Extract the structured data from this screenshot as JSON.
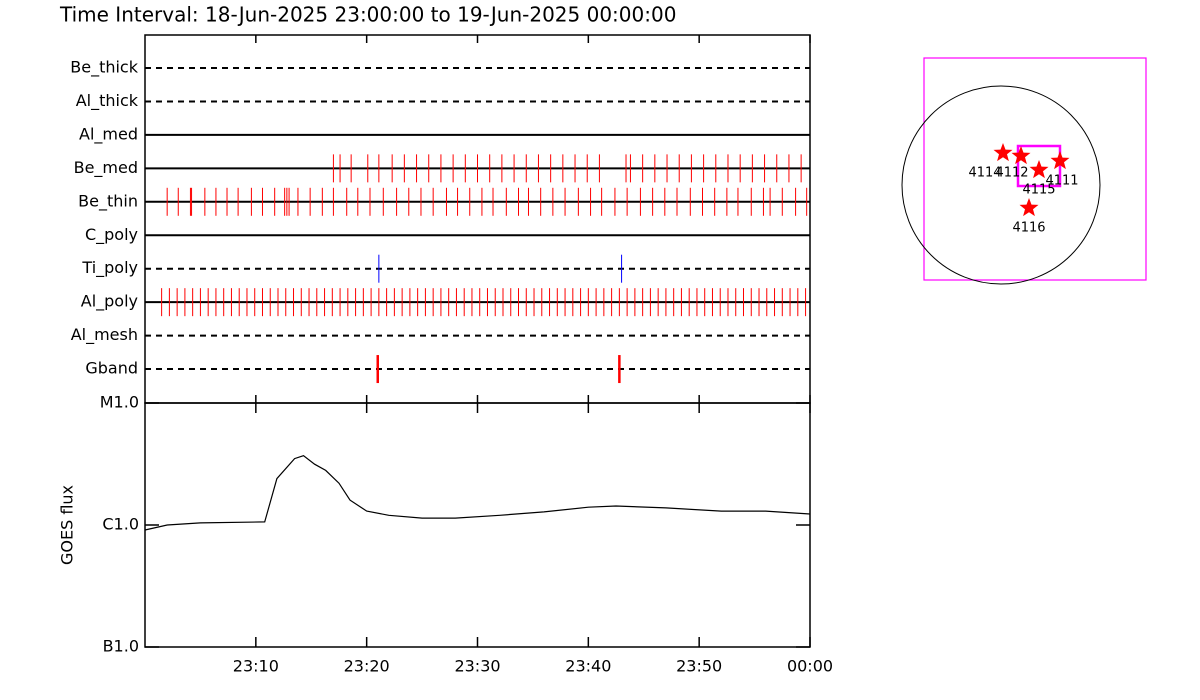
{
  "chart_data": [
    {
      "type": "event",
      "title": "Time Interval: 18-Jun-2025 23:00:00 to 19-Jun-2025 00:00:00",
      "xlim": [
        0,
        60
      ],
      "xticks": [
        {
          "value": 10,
          "label": "23:10"
        },
        {
          "value": 20,
          "label": "23:20"
        },
        {
          "value": 30,
          "label": "23:30"
        },
        {
          "value": 40,
          "label": "23:40"
        },
        {
          "value": 50,
          "label": "23:50"
        },
        {
          "value": 60,
          "label": "00:00"
        }
      ],
      "series": [
        {
          "name": "Be_thick",
          "line": "dashed",
          "color": "#ff0000",
          "values": []
        },
        {
          "name": "Al_thick",
          "line": "dashed",
          "color": "#ff0000",
          "values": []
        },
        {
          "name": "Al_med",
          "line": "solid",
          "color": "#ff0000",
          "values": []
        },
        {
          "name": "Be_med",
          "line": "solid",
          "color": "#ff0000",
          "values": [
            17.0,
            17.6,
            18.6,
            20.1,
            21.1,
            22.3,
            23.4,
            24.5,
            25.6,
            26.7,
            27.8,
            28.9,
            30.0,
            31.1,
            32.2,
            33.3,
            34.4,
            35.5,
            36.6,
            37.7,
            38.8,
            39.9,
            41.0,
            43.4,
            43.8,
            44.9,
            46.0,
            47.1,
            48.2,
            49.3,
            50.4,
            51.5,
            52.6,
            53.7,
            54.8,
            55.9,
            57.0,
            58.1,
            59.2
          ]
        },
        {
          "name": "Be_thin",
          "line": "solid",
          "color": "#ff0000",
          "values": [
            2.0,
            3.0,
            4.1,
            4.2,
            5.4,
            6.4,
            7.4,
            8.4,
            9.6,
            10.6,
            11.7,
            12.6,
            12.8,
            13.0,
            13.8,
            14.9,
            16.0,
            17.0,
            18.2,
            19.2,
            20.3,
            21.5,
            22.7,
            23.8,
            24.9,
            26.0,
            27.2,
            28.2,
            29.3,
            30.4,
            31.4,
            32.6,
            33.7,
            34.6,
            35.7,
            36.8,
            37.9,
            39.1,
            40.2,
            41.2,
            42.4,
            43.5,
            44.7,
            45.8,
            46.9,
            48.0,
            49.2,
            50.3,
            51.4,
            52.5,
            53.5,
            54.7,
            55.8,
            56.4,
            57.5,
            58.7,
            59.7
          ]
        },
        {
          "name": "C_poly",
          "line": "solid",
          "color": "#ff0000",
          "values": []
        },
        {
          "name": "Ti_poly",
          "line": "dashed",
          "color": "#0000ff",
          "values": [
            21.1,
            43.0
          ]
        },
        {
          "name": "Al_poly",
          "line": "solid",
          "color": "#ff0000",
          "values": [
            1.5,
            2.2,
            2.9,
            3.6,
            4.3,
            5.0,
            5.7,
            6.4,
            7.1,
            7.8,
            8.5,
            9.2,
            9.9,
            10.6,
            11.3,
            12.0,
            12.7,
            13.4,
            14.1,
            14.8,
            15.5,
            16.2,
            16.9,
            17.6,
            18.3,
            19.0,
            19.7,
            20.4,
            21.1,
            21.8,
            22.5,
            23.2,
            23.9,
            24.6,
            25.3,
            26.0,
            26.7,
            27.4,
            28.1,
            28.8,
            29.5,
            30.2,
            30.9,
            31.6,
            32.3,
            33.0,
            33.7,
            34.4,
            35.1,
            35.8,
            36.5,
            37.2,
            37.9,
            38.6,
            39.3,
            40.0,
            40.7,
            41.4,
            42.1,
            42.8,
            43.5,
            44.2,
            44.9,
            45.6,
            46.3,
            47.0,
            47.7,
            48.4,
            49.1,
            49.8,
            50.5,
            51.2,
            51.9,
            52.6,
            53.3,
            54.0,
            54.7,
            55.4,
            56.1,
            56.8,
            57.5,
            58.2,
            58.9,
            59.6
          ]
        },
        {
          "name": "Al_mesh",
          "line": "dashed",
          "color": "#ff0000",
          "values": []
        },
        {
          "name": "Gband",
          "line": "dashed",
          "color": "#ff0000",
          "values": [
            21.0,
            42.8
          ]
        }
      ]
    },
    {
      "type": "line",
      "ylabel": "GOES flux",
      "log": true,
      "color": "#000000",
      "xlim": [
        0,
        60
      ],
      "xticks": [
        {
          "value": 10,
          "label": "23:10"
        },
        {
          "value": 20,
          "label": "23:20"
        },
        {
          "value": 30,
          "label": "23:30"
        },
        {
          "value": 40,
          "label": "23:40"
        },
        {
          "value": 50,
          "label": "23:50"
        },
        {
          "value": 60,
          "label": "00:00"
        }
      ],
      "ylim": [
        1e-07,
        1e-05
      ],
      "yticks": [
        {
          "value": 1e-07,
          "label": "B1.0"
        },
        {
          "value": 1e-06,
          "label": "C1.0"
        },
        {
          "value": 1e-05,
          "label": "M1.0"
        }
      ],
      "x": [
        0,
        2,
        5,
        10.8,
        11.9,
        13.5,
        14.3,
        15.3,
        16.3,
        17.5,
        18.5,
        20,
        22,
        25,
        28,
        32,
        36,
        40,
        42.5,
        47,
        52,
        56,
        60
      ],
      "values": [
        9.1e-07,
        1e-06,
        1.04e-06,
        1.06e-06,
        2.4e-06,
        3.5e-06,
        3.7e-06,
        3.15e-06,
        2.8e-06,
        2.2e-06,
        1.6e-06,
        1.3e-06,
        1.2e-06,
        1.14e-06,
        1.14e-06,
        1.2e-06,
        1.28e-06,
        1.4e-06,
        1.43e-06,
        1.38e-06,
        1.3e-06,
        1.3e-06,
        1.23e-06
      ]
    }
  ],
  "map": {
    "regions": [
      {
        "label": "4114"
      },
      {
        "label": "4112"
      },
      {
        "label": "4115"
      },
      {
        "label": "4111"
      },
      {
        "label": "4116"
      }
    ]
  }
}
